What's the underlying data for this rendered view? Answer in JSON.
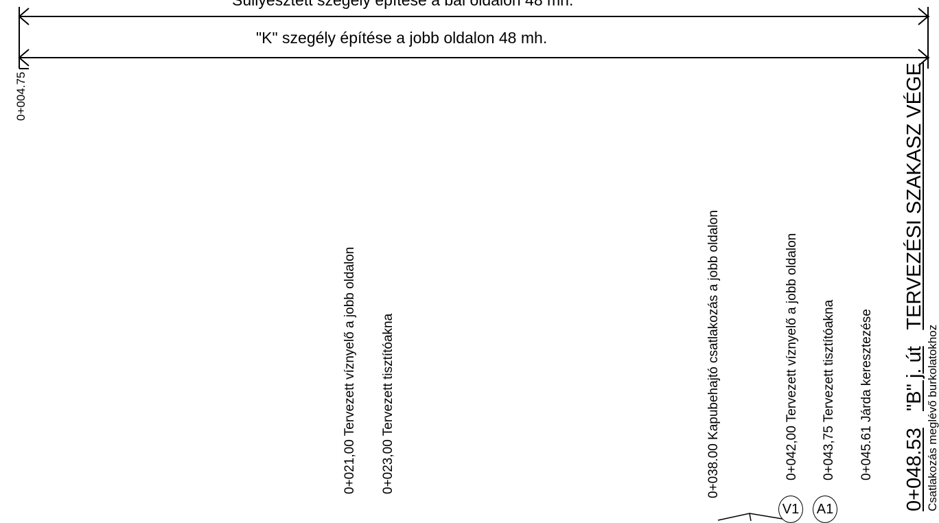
{
  "header": {
    "line1": "Süllyesztett szegély építése a bal oldalon 48 mh.",
    "line2": "\"K\" szegély építése a jobb oldalon 48 mh."
  },
  "station_start": "0+004.75",
  "annotations": [
    "0+021,00 Tervezett víznyelő a jobb oldalon",
    "0+023,00 Tervezett tisztítóakna",
    "0+038.00 Kapubehajtó csatlakozás a jobb oldalon",
    "0+042,00 Tervezett víznyelő a jobb oldalon",
    "0+043,75 Tervezett tisztítóakna",
    "0+045.61 Járda keresztezése"
  ],
  "end_title": {
    "station": "0+048.53",
    "road": "\"B\" j. út",
    "label": "TERVEZÉSI SZAKASZ VÉGE"
  },
  "end_note": "Csatlakozás meglévő burkolatokhoz",
  "symbols": {
    "v1": "V1",
    "a1": "A1"
  }
}
